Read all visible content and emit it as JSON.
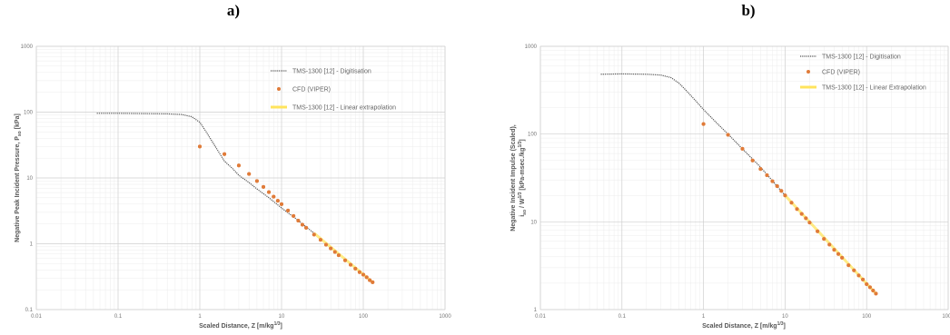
{
  "chart_data": [
    {
      "panel_label": "a)",
      "type": "scatter",
      "title": "",
      "x_scale": "log",
      "y_scale": "log",
      "xlim": [
        0.01,
        1000
      ],
      "ylim": [
        0.1,
        1000
      ],
      "x_ticks": [
        "0.01",
        "0.1",
        "1",
        "10",
        "100",
        "1000"
      ],
      "y_ticks": [
        "0.1",
        "1",
        "10",
        "100",
        "1000"
      ],
      "xlabel_main": "Scaled Distance, Z [m/kg",
      "xlabel_sup": "1/3",
      "xlabel_end": "]",
      "ylabel_main": "Negative Peak Incident Pressure, P",
      "ylabel_sub": "so",
      "ylabel_end": " [kPa]",
      "grid": true,
      "legend_position": "top-right",
      "series": [
        {
          "name": "TMS-1300 [12] - Digitisation",
          "style": "dotted-line",
          "color": "#555555",
          "x": [
            0.055,
            0.1,
            0.2,
            0.4,
            0.6,
            0.8,
            1.0,
            1.2,
            1.5,
            2.0,
            2.5,
            3.0,
            4.0,
            5.0,
            7.0,
            10.0,
            15.0,
            20.0,
            25.0
          ],
          "y": [
            96,
            96,
            95,
            94,
            92,
            85,
            70,
            50,
            32,
            18,
            14,
            11,
            8.5,
            6.8,
            5.0,
            3.5,
            2.4,
            1.8,
            1.45
          ]
        },
        {
          "name": "CFD (VIPER)",
          "style": "markers",
          "color": "#e07b39",
          "x": [
            1.0,
            2.0,
            3.0,
            4.0,
            5.0,
            6.0,
            7.0,
            8.0,
            9.0,
            10.0,
            12.0,
            14.0,
            16.0,
            18.0,
            20.0,
            25.0,
            30.0,
            35.0,
            40.0,
            45.0,
            50.0,
            60.0,
            70.0,
            80.0,
            90.0,
            100.0,
            110.0,
            120.0,
            130.0
          ],
          "y": [
            30,
            23,
            15.5,
            11.5,
            9.0,
            7.3,
            6.1,
            5.2,
            4.5,
            4.0,
            3.2,
            2.65,
            2.25,
            1.95,
            1.75,
            1.38,
            1.15,
            0.97,
            0.85,
            0.75,
            0.67,
            0.56,
            0.48,
            0.42,
            0.37,
            0.34,
            0.31,
            0.28,
            0.26
          ]
        },
        {
          "name": "TMS-1300 [12] - Linear extrapolation",
          "style": "line",
          "color": "#ffe45c",
          "x": [
            25.0,
            130.0
          ],
          "y": [
            1.45,
            0.26
          ]
        }
      ]
    },
    {
      "panel_label": "b)",
      "type": "scatter",
      "title": "",
      "x_scale": "log",
      "y_scale": "log",
      "xlim": [
        0.01,
        1000
      ],
      "ylim": [
        1,
        1000
      ],
      "x_ticks": [
        "0.01",
        "0.1",
        "1",
        "10",
        "100",
        "1000"
      ],
      "y_ticks": [
        "1",
        "10",
        "100",
        "1000"
      ],
      "xlabel_main": "Scaled Distance, Z [m/kg",
      "xlabel_sup": "1/3",
      "xlabel_end": "]",
      "ylabel_line1": "Negative Incident Impulse (Scaled),",
      "ylabel_line2_a": "i",
      "ylabel_line2_sub": "so",
      "ylabel_line2_b": " / W",
      "ylabel_line2_sup": "1/3",
      "ylabel_line2_c": " [kPa-msec./kg",
      "ylabel_line2_sup2": "1/3",
      "ylabel_line2_d": "]",
      "grid": true,
      "legend_position": "top-right",
      "series": [
        {
          "name": "TMS-1300 [12] - Digitisation",
          "style": "dotted-line",
          "color": "#555555",
          "x": [
            0.055,
            0.1,
            0.2,
            0.3,
            0.4,
            0.5,
            0.6,
            0.8,
            1.0,
            1.5,
            2.0,
            3.0,
            5.0,
            10.0
          ],
          "y": [
            480,
            485,
            480,
            470,
            440,
            380,
            320,
            240,
            190,
            130,
            100,
            68,
            42,
            20
          ]
        },
        {
          "name": "CFD (VIPER)",
          "style": "markers",
          "color": "#e07b39",
          "x": [
            1.0,
            2.0,
            3.0,
            4.0,
            5.0,
            6.0,
            7.0,
            8.0,
            9.0,
            10.0,
            12.0,
            14.0,
            16.0,
            18.0,
            20.0,
            25.0,
            30.0,
            35.0,
            40.0,
            45.0,
            50.0,
            60.0,
            70.0,
            80.0,
            90.0,
            100.0,
            110.0,
            120.0,
            130.0
          ],
          "y": [
            130,
            98,
            68,
            50,
            40,
            34,
            29,
            25.5,
            22.5,
            20,
            16.5,
            14,
            12.3,
            11,
            9.8,
            7.8,
            6.4,
            5.5,
            4.8,
            4.3,
            3.9,
            3.2,
            2.8,
            2.45,
            2.2,
            1.95,
            1.8,
            1.65,
            1.52
          ]
        },
        {
          "name": "TMS-1300 [12] - Linear Extrapolation",
          "style": "line",
          "color": "#ffe45c",
          "x": [
            10.0,
            130.0
          ],
          "y": [
            20,
            1.52
          ]
        }
      ]
    }
  ]
}
